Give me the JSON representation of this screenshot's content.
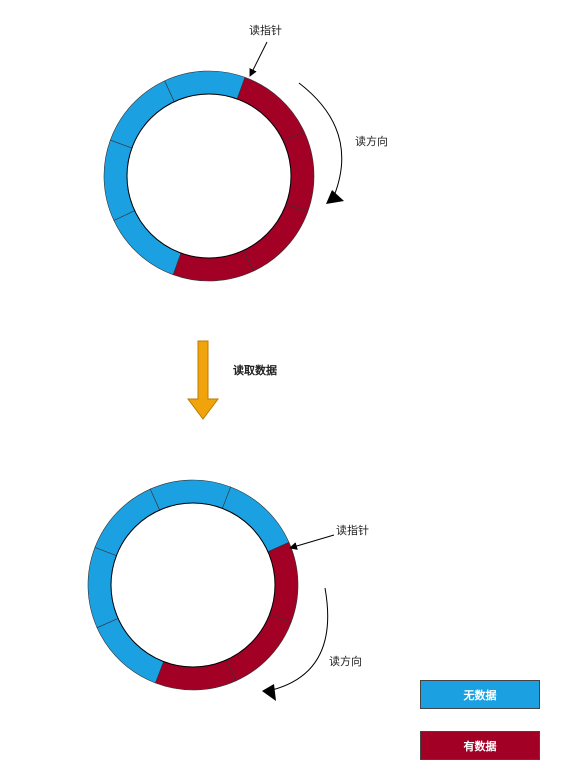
{
  "colors": {
    "empty": "#1ba1e2",
    "data": "#a20025",
    "arrow": "#f0a30a",
    "stroke": "#333333"
  },
  "top_ring": {
    "pointer_label": "读指针",
    "direction_label": "读方向"
  },
  "transition": {
    "label": "读取数据"
  },
  "bottom_ring": {
    "pointer_label": "读指针",
    "direction_label": "读方向"
  },
  "legend": {
    "empty_label": "无数据",
    "data_label": "有数据"
  }
}
